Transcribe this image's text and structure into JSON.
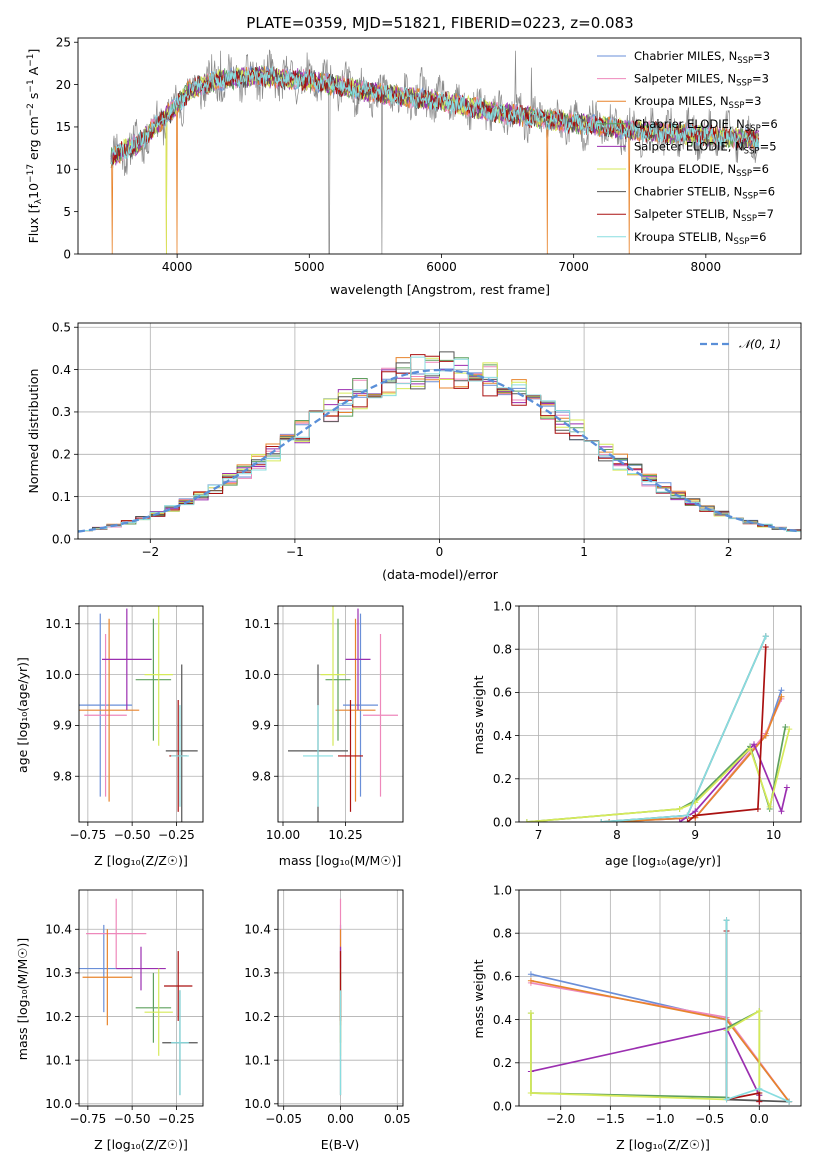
{
  "colors": {
    "chabrier_miles": "#6a8fd8",
    "salpeter_miles": "#ee88bb",
    "kroupa_miles": "#e8842c",
    "chabrier_elodie": "#5ea05e",
    "salpeter_elodie": "#9b2fb0",
    "kroupa_elodie": "#d6ea5a",
    "chabrier_stelib": "#555555",
    "salpeter_stelib": "#aa1111",
    "kroupa_stelib": "#88dde0",
    "normal_curve": "#5a8fd8",
    "spectrum_grey": "#8a8a8a"
  },
  "chart_data": [
    {
      "id": "spectrum",
      "type": "line",
      "title": "PLATE=0359, MJD=51821, FIBERID=0223, z=0.083",
      "xlabel": "wavelength [Angstrom, rest frame]",
      "ylabel_parts": {
        "a": "Flux [f",
        "b": "λ",
        "c": "10",
        "d": "−17",
        "e": " erg cm",
        "f": "−2",
        "g": " s",
        "h": "−1",
        "i": " A",
        "j": "−1",
        "k": "]"
      },
      "xlim": [
        3250,
        8720
      ],
      "ylim": [
        0,
        25.5
      ],
      "xticks": [
        4000,
        5000,
        6000,
        7000,
        8000
      ],
      "yticks": [
        0,
        5,
        10,
        15,
        20,
        25
      ],
      "legend_position": "top-right",
      "legend": [
        {
          "key": "chabrier_miles",
          "pre": "Chabrier MILES, N",
          "sub": "SSP",
          "post": "=3"
        },
        {
          "key": "salpeter_miles",
          "pre": "Salpeter MILES, N",
          "sub": "SSP",
          "post": "=3"
        },
        {
          "key": "kroupa_miles",
          "pre": "Kroupa MILES, N",
          "sub": "SSP",
          "post": "=3"
        },
        {
          "key": "chabrier_elodie",
          "pre": "Chabrier ELODIE, N",
          "sub": "SSP",
          "post": "=6"
        },
        {
          "key": "salpeter_elodie",
          "pre": "Salpeter ELODIE, N",
          "sub": "SSP",
          "post": "=5"
        },
        {
          "key": "kroupa_elodie",
          "pre": "Kroupa ELODIE, N",
          "sub": "SSP",
          "post": "=6"
        },
        {
          "key": "chabrier_stelib",
          "pre": "Chabrier STELIB, N",
          "sub": "SSP",
          "post": "=6"
        },
        {
          "key": "salpeter_stelib",
          "pre": "Salpeter STELIB, N",
          "sub": "SSP",
          "post": "=7"
        },
        {
          "key": "kroupa_stelib",
          "pre": "Kroupa STELIB, N",
          "sub": "SSP",
          "post": "=6"
        }
      ],
      "continuum": [
        [
          3500,
          11.5
        ],
        [
          3700,
          13
        ],
        [
          3900,
          16
        ],
        [
          4000,
          17.5
        ],
        [
          4100,
          19.5
        ],
        [
          4300,
          20.5
        ],
        [
          4600,
          21
        ],
        [
          5000,
          20.5
        ],
        [
          5500,
          19
        ],
        [
          6000,
          18
        ],
        [
          6500,
          16.5
        ],
        [
          7000,
          15.5
        ],
        [
          7500,
          14.5
        ],
        [
          8000,
          14
        ],
        [
          8400,
          13.5
        ]
      ],
      "observed_spikes": [
        [
          4330,
          24
        ],
        [
          5150,
          0
        ],
        [
          5550,
          0
        ],
        [
          5850,
          22
        ],
        [
          6560,
          24
        ],
        [
          6680,
          22
        ]
      ],
      "model_edges": [
        [
          3510,
          0
        ],
        [
          3920,
          0
        ],
        [
          4000,
          0
        ],
        [
          6800,
          0
        ],
        [
          7420,
          0
        ]
      ]
    },
    {
      "id": "residuals",
      "type": "histogram",
      "xlabel": "(data-model)/error",
      "ylabel": "Normed distribution",
      "xlim": [
        -2.5,
        2.5
      ],
      "ylim": [
        0,
        0.51
      ],
      "xticks": [
        -2,
        -1,
        0,
        1,
        2
      ],
      "xtick_labels": [
        "−2",
        "−1",
        "0",
        "1",
        "2"
      ],
      "yticks": [
        0,
        0.1,
        0.2,
        0.3,
        0.4,
        0.5
      ],
      "ytick_labels": [
        "0.0",
        "0.1",
        "0.2",
        "0.3",
        "0.4",
        "0.5"
      ],
      "bin_width": 0.1,
      "bin_start": -2.5,
      "grid": true,
      "legend_position": "top-right",
      "legend": [
        {
          "key": "normal_curve",
          "label": "𝒩(0, 1)"
        }
      ],
      "amplitude": 0.399
    },
    {
      "id": "age-vs-Z",
      "type": "errorbar",
      "xlabel": "Z [log₁₀(Z/Z☉)]",
      "ylabel": "age  [log₁₀(age/yr)]",
      "xlim": [
        -0.8,
        -0.1
      ],
      "ylim": [
        9.71,
        10.135
      ],
      "xticks": [
        -0.75,
        -0.5,
        -0.25
      ],
      "xtick_labels": [
        "−0.75",
        "−0.50",
        "−0.25"
      ],
      "yticks": [
        9.8,
        9.9,
        10.0,
        10.1
      ],
      "ytick_labels": [
        "9.8",
        "9.9",
        "10.0",
        "10.1"
      ],
      "grid": true,
      "points": [
        {
          "key": "chabrier_miles",
          "x": -0.68,
          "y": 9.94,
          "xe": 0.18,
          "ye": 0.18
        },
        {
          "key": "salpeter_miles",
          "x": -0.65,
          "y": 9.92,
          "xe": 0.12,
          "ye": 0.16
        },
        {
          "key": "kroupa_miles",
          "x": -0.63,
          "y": 9.93,
          "xe": 0.17,
          "ye": 0.18
        },
        {
          "key": "chabrier_elodie",
          "x": -0.38,
          "y": 9.99,
          "xe": 0.1,
          "ye": 0.12
        },
        {
          "key": "salpeter_elodie",
          "x": -0.53,
          "y": 10.03,
          "xe": 0.14,
          "ye": 0.1
        },
        {
          "key": "kroupa_elodie",
          "x": -0.35,
          "y": 10.0,
          "xe": 0.08,
          "ye": 0.14
        },
        {
          "key": "chabrier_stelib",
          "x": -0.22,
          "y": 9.85,
          "xe": 0.09,
          "ye": 0.17
        },
        {
          "key": "salpeter_stelib",
          "x": -0.24,
          "y": 9.84,
          "xe": 0.05,
          "ye": 0.11
        },
        {
          "key": "kroupa_stelib",
          "x": -0.23,
          "y": 9.84,
          "xe": 0.05,
          "ye": 0.1
        }
      ]
    },
    {
      "id": "age-vs-mass",
      "type": "errorbar",
      "xlabel": "mass [log₁₀(M/M☉)]",
      "ylabel": "",
      "xlim": [
        9.98,
        10.48
      ],
      "ylim": [
        9.71,
        10.135
      ],
      "xticks": [
        10.0,
        10.25
      ],
      "xtick_labels": [
        "10.00",
        "10.25"
      ],
      "yticks": [
        9.8,
        9.9,
        10.0,
        10.1
      ],
      "ytick_labels": [
        "9.8",
        "9.9",
        "10.0",
        "10.1"
      ],
      "grid": true,
      "points": [
        {
          "key": "chabrier_miles",
          "x": 10.31,
          "y": 9.94,
          "xe": 0.07,
          "ye": 0.18
        },
        {
          "key": "salpeter_miles",
          "x": 10.39,
          "y": 9.92,
          "xe": 0.07,
          "ye": 0.16
        },
        {
          "key": "kroupa_miles",
          "x": 10.29,
          "y": 9.93,
          "xe": 0.08,
          "ye": 0.18
        },
        {
          "key": "chabrier_elodie",
          "x": 10.22,
          "y": 9.99,
          "xe": 0.05,
          "ye": 0.12
        },
        {
          "key": "salpeter_elodie",
          "x": 10.3,
          "y": 10.03,
          "xe": 0.05,
          "ye": 0.1
        },
        {
          "key": "kroupa_elodie",
          "x": 10.2,
          "y": 10.0,
          "xe": 0.05,
          "ye": 0.14
        },
        {
          "key": "chabrier_stelib",
          "x": 10.14,
          "y": 9.85,
          "xe": 0.12,
          "ye": 0.17
        },
        {
          "key": "salpeter_stelib",
          "x": 10.27,
          "y": 9.84,
          "xe": 0.05,
          "ye": 0.11
        },
        {
          "key": "kroupa_stelib",
          "x": 10.14,
          "y": 9.84,
          "xe": 0.06,
          "ye": 0.1
        }
      ]
    },
    {
      "id": "weight-vs-age",
      "type": "line",
      "xlabel": "age  [log₁₀(age/yr)]",
      "ylabel": "mass weight",
      "xlim": [
        6.75,
        10.35
      ],
      "ylim": [
        0,
        1.0
      ],
      "xticks": [
        7,
        8,
        9,
        10
      ],
      "yticks": [
        0,
        0.2,
        0.4,
        0.6,
        0.8,
        1.0
      ],
      "ytick_labels": [
        "0.0",
        "0.2",
        "0.4",
        "0.6",
        "0.8",
        "1.0"
      ],
      "grid": true,
      "series": [
        {
          "key": "chabrier_miles",
          "x": [
            7.9,
            9.0,
            9.9,
            10.1
          ],
          "y": [
            0.0,
            0.02,
            0.4,
            0.61
          ]
        },
        {
          "key": "salpeter_miles",
          "x": [
            7.9,
            9.0,
            9.9,
            10.1
          ],
          "y": [
            0.0,
            0.02,
            0.41,
            0.57
          ]
        },
        {
          "key": "kroupa_miles",
          "x": [
            7.9,
            9.0,
            9.9,
            10.1
          ],
          "y": [
            0.0,
            0.02,
            0.4,
            0.58
          ]
        },
        {
          "key": "chabrier_elodie",
          "x": [
            6.85,
            8.8,
            9.0,
            9.7,
            9.95,
            10.15
          ],
          "y": [
            0.0,
            0.06,
            0.1,
            0.35,
            0.06,
            0.44
          ]
        },
        {
          "key": "salpeter_elodie",
          "x": [
            8.8,
            9.0,
            9.75,
            10.1,
            10.17
          ],
          "y": [
            0.0,
            0.05,
            0.36,
            0.05,
            0.16
          ]
        },
        {
          "key": "kroupa_elodie",
          "x": [
            6.85,
            8.8,
            9.0,
            9.7,
            9.95,
            10.2
          ],
          "y": [
            0.0,
            0.06,
            0.09,
            0.34,
            0.07,
            0.43
          ]
        },
        {
          "key": "chabrier_stelib",
          "x": [
            7.8,
            8.9,
            9.9
          ],
          "y": [
            0.0,
            0.03,
            0.86
          ]
        },
        {
          "key": "salpeter_stelib",
          "x": [
            8.9,
            9.0,
            9.8,
            9.9
          ],
          "y": [
            0.0,
            0.03,
            0.06,
            0.81
          ]
        },
        {
          "key": "kroupa_stelib",
          "x": [
            7.8,
            8.9,
            9.9
          ],
          "y": [
            0.0,
            0.03,
            0.86
          ]
        }
      ]
    },
    {
      "id": "mass-vs-Z",
      "type": "errorbar",
      "xlabel": "Z [log₁₀(Z/Z☉)]",
      "ylabel": "mass [log₁₀(M/M☉)]",
      "xlim": [
        -0.8,
        -0.1
      ],
      "ylim": [
        9.995,
        10.49
      ],
      "xticks": [
        -0.75,
        -0.5,
        -0.25
      ],
      "xtick_labels": [
        "−0.75",
        "−0.50",
        "−0.25"
      ],
      "yticks": [
        10.0,
        10.1,
        10.2,
        10.3,
        10.4
      ],
      "ytick_labels": [
        "10.0",
        "10.1",
        "10.2",
        "10.3",
        "10.4"
      ],
      "grid": true,
      "points": [
        {
          "key": "chabrier_miles",
          "x": -0.66,
          "y": 10.31,
          "xe": 0.14,
          "ye": 0.1
        },
        {
          "key": "salpeter_miles",
          "x": -0.59,
          "y": 10.39,
          "xe": 0.17,
          "ye": 0.08
        },
        {
          "key": "kroupa_miles",
          "x": -0.64,
          "y": 10.29,
          "xe": 0.14,
          "ye": 0.11
        },
        {
          "key": "chabrier_elodie",
          "x": -0.38,
          "y": 10.22,
          "xe": 0.1,
          "ye": 0.08
        },
        {
          "key": "salpeter_elodie",
          "x": -0.45,
          "y": 10.31,
          "xe": 0.14,
          "ye": 0.05
        },
        {
          "key": "kroupa_elodie",
          "x": -0.35,
          "y": 10.21,
          "xe": 0.08,
          "ye": 0.1
        },
        {
          "key": "chabrier_stelib",
          "x": -0.23,
          "y": 10.14,
          "xe": 0.1,
          "ye": 0.12
        },
        {
          "key": "salpeter_stelib",
          "x": -0.24,
          "y": 10.27,
          "xe": 0.08,
          "ye": 0.08
        },
        {
          "key": "kroupa_stelib",
          "x": -0.23,
          "y": 10.14,
          "xe": 0.05,
          "ye": 0.12
        }
      ]
    },
    {
      "id": "mass-vs-EBV",
      "type": "errorbar",
      "xlabel": "E(B-V)",
      "ylabel": "",
      "xlim": [
        -0.055,
        0.055
      ],
      "ylim": [
        9.995,
        10.49
      ],
      "xticks": [
        -0.05,
        0.0,
        0.05
      ],
      "xtick_labels": [
        "−0.05",
        "0.00",
        "0.05"
      ],
      "yticks": [
        10.0,
        10.1,
        10.2,
        10.3,
        10.4
      ],
      "ytick_labels": [
        "10.0",
        "10.1",
        "10.2",
        "10.3",
        "10.4"
      ],
      "grid": true,
      "points": [
        {
          "key": "chabrier_miles",
          "x": 0.0,
          "y": 10.31,
          "xe": 0.0,
          "ye": 0.1
        },
        {
          "key": "salpeter_miles",
          "x": 0.0,
          "y": 10.39,
          "xe": 0.0,
          "ye": 0.08
        },
        {
          "key": "kroupa_miles",
          "x": 0.0,
          "y": 10.29,
          "xe": 0.0,
          "ye": 0.11
        },
        {
          "key": "chabrier_elodie",
          "x": 0.0,
          "y": 10.22,
          "xe": 0.0,
          "ye": 0.08
        },
        {
          "key": "salpeter_elodie",
          "x": 0.0,
          "y": 10.31,
          "xe": 0.0,
          "ye": 0.05
        },
        {
          "key": "kroupa_elodie",
          "x": 0.0,
          "y": 10.21,
          "xe": 0.0,
          "ye": 0.1
        },
        {
          "key": "chabrier_stelib",
          "x": 0.0,
          "y": 10.14,
          "xe": 0.0,
          "ye": 0.12
        },
        {
          "key": "salpeter_stelib",
          "x": 0.0,
          "y": 10.27,
          "xe": 0.0,
          "ye": 0.08
        },
        {
          "key": "kroupa_stelib",
          "x": 0.0,
          "y": 10.14,
          "xe": 0.0,
          "ye": 0.12
        }
      ]
    },
    {
      "id": "weight-vs-Z",
      "type": "line",
      "xlabel": "Z [log₁₀(Z/Z☉)]",
      "ylabel": "mass weight",
      "xlim": [
        -2.42,
        0.42
      ],
      "ylim": [
        0,
        1.0
      ],
      "xticks": [
        -2.0,
        -1.5,
        -1.0,
        -0.5,
        0.0
      ],
      "xtick_labels": [
        "−2.0",
        "−1.5",
        "−1.0",
        "−0.5",
        "0.0"
      ],
      "yticks": [
        0,
        0.2,
        0.4,
        0.6,
        0.8,
        1.0
      ],
      "ytick_labels": [
        "0.0",
        "0.2",
        "0.4",
        "0.6",
        "0.8",
        "1.0"
      ],
      "grid": true,
      "series": [
        {
          "key": "chabrier_miles",
          "x": [
            -2.3,
            -0.33,
            0.3
          ],
          "y": [
            0.61,
            0.4,
            0.02
          ]
        },
        {
          "key": "salpeter_miles",
          "x": [
            -2.3,
            -0.33,
            0.3
          ],
          "y": [
            0.57,
            0.41,
            0.02
          ]
        },
        {
          "key": "kroupa_miles",
          "x": [
            -2.3,
            -0.33,
            0.3
          ],
          "y": [
            0.58,
            0.4,
            0.02
          ]
        },
        {
          "key": "chabrier_elodie",
          "x": [
            -2.3,
            -2.3,
            -0.33,
            -0.33,
            0.0,
            0.0
          ],
          "y": [
            0.43,
            0.06,
            0.04,
            0.36,
            0.44,
            0.05
          ]
        },
        {
          "key": "salpeter_elodie",
          "x": [
            -2.3,
            -0.33,
            0.0,
            0.0
          ],
          "y": [
            0.16,
            0.36,
            0.05,
            0.02
          ]
        },
        {
          "key": "kroupa_elodie",
          "x": [
            -2.3,
            -2.3,
            -0.33,
            -0.33,
            0.0,
            0.0
          ],
          "y": [
            0.43,
            0.06,
            0.03,
            0.35,
            0.44,
            0.06
          ]
        },
        {
          "key": "chabrier_stelib",
          "x": [
            -0.33,
            -0.33,
            0.3
          ],
          "y": [
            0.86,
            0.03,
            0.02
          ]
        },
        {
          "key": "salpeter_stelib",
          "x": [
            -0.33,
            -0.33,
            0.0,
            0.0
          ],
          "y": [
            0.81,
            0.03,
            0.06,
            0.02
          ]
        },
        {
          "key": "kroupa_stelib",
          "x": [
            -0.33,
            -0.33,
            0.0,
            0.3
          ],
          "y": [
            0.86,
            0.03,
            0.08,
            0.02
          ]
        }
      ]
    }
  ]
}
